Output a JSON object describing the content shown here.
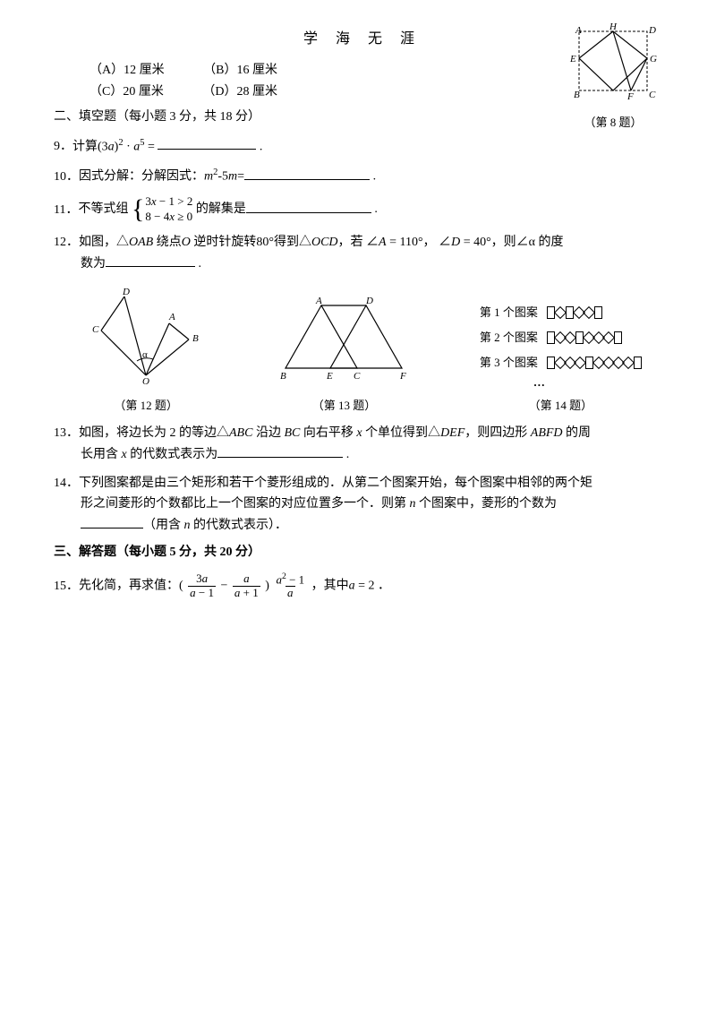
{
  "header": {
    "title": "学 海 无 涯"
  },
  "q8": {
    "choices": {
      "a_label": "（A）12 厘米",
      "b_label": "（B）16 厘米",
      "c_label": "（C）20 厘米",
      "d_label": "（D）28 厘米"
    },
    "caption": "（第 8 题）",
    "figure": {
      "labels": {
        "A": "A",
        "H": "H",
        "D": "D",
        "E": "E",
        "G": "G",
        "B": "B",
        "F": "F",
        "C": "C"
      }
    }
  },
  "section2": {
    "title": "二、填空题（每小题 3 分，共 18 分）"
  },
  "q9": {
    "num": "9．",
    "pre": "计算(3",
    "var_a": "a",
    "exp1": ")",
    "sup1": "2",
    "mid": " · ",
    "var_a2": "a",
    "sup2": "5",
    "eq": " ="
  },
  "q10": {
    "num": "10．",
    "text": "因式分解：分解因式：",
    "var_m": "m",
    "sup1": "2",
    "mid": "-5",
    "var_m2": "m",
    "eq": "="
  },
  "q11": {
    "num": "11．",
    "pre": "不等式组",
    "line1_a": "3",
    "line1_x": "x",
    "line1_b": " − 1 > 2",
    "line2_a": "8 − 4",
    "line2_x": "x",
    "line2_b": " ≥ 0",
    "post": " 的解集是"
  },
  "q12": {
    "num": "12．",
    "body": "如图，△",
    "oab": "OAB",
    "txt2": " 绕点",
    "o_pt": "O",
    "txt3": " 逆时针旋转80°得到△",
    "ocd": "OCD",
    "txt4": "，若 ∠",
    "a_ang": "A",
    "txt5": " = 110°， ∠",
    "d_ang": "D",
    "txt6": " = 40°，则∠α 的度",
    "sub": "数为",
    "caption": "（第 12 题）",
    "figure": {
      "labels": {
        "D": "D",
        "C": "C",
        "A": "A",
        "B": "B",
        "O": "O",
        "alpha": "α"
      }
    }
  },
  "q13": {
    "num": "13．",
    "t1": "如图，将边长为 2 的等边△",
    "abc": "ABC",
    "t2": " 沿边 ",
    "bc": "BC",
    "t3": " 向右平移 ",
    "x_var": "x",
    "t4": " 个单位得到△",
    "def": "DEF",
    "t5": "，则四边形 ",
    "abfd": "ABFD",
    "t6": " 的周",
    "sub_a": "长用含 ",
    "sub_x": "x",
    "sub_b": " 的代数式表示为",
    "caption": "（第 13 题）",
    "figure": {
      "labels": {
        "A": "A",
        "D": "D",
        "B": "B",
        "E": "E",
        "C": "C",
        "F": "F"
      }
    }
  },
  "q14": {
    "num": "14．",
    "t1": "下列图案都是由三个矩形和若干个菱形组成的．从第二个图案开始，每个图案中相邻的两个矩",
    "t2": "形之间菱形的个数都比上一个图案的对应位置多一个．则第  ",
    "n_var": "n",
    "t3": " 个图案中，菱形的个数为",
    "sub_a": "（用含 ",
    "sub_n": "n",
    "sub_b": " 的代数式表示）．",
    "caption": "（第 14 题）",
    "labels": {
      "p1": "第 1 个图案",
      "p2": "第 2 个图案",
      "p3": "第 3 个图案"
    },
    "patterns": {
      "p1": [
        "r",
        "d",
        "r",
        "d",
        "d",
        "r"
      ],
      "p2": [
        "r",
        "d",
        "d",
        "r",
        "d",
        "d",
        "d",
        "r"
      ],
      "p3": [
        "r",
        "d",
        "d",
        "d",
        "r",
        "d",
        "d",
        "d",
        "d",
        "r"
      ]
    },
    "dots": "…"
  },
  "section3": {
    "title": "三、解答题（每小题 5 分，共 20 分）"
  },
  "q15": {
    "num": "15．",
    "pre": "先化简，再求值：(",
    "f1_num_a": "3",
    "f1_num_b": "a",
    "f1_den_a": "a",
    "f1_den_b": " − 1",
    "minus": " − ",
    "f2_num": "a",
    "f2_den_a": "a",
    "f2_den_b": " + 1",
    "close": ")",
    "f3_num_a": "a",
    "f3_num_sup": "2",
    "f3_num_b": " − 1",
    "f3_den": "a",
    "post_a": " ，其中",
    "post_var": "a",
    "post_b": " = 2 ．"
  }
}
